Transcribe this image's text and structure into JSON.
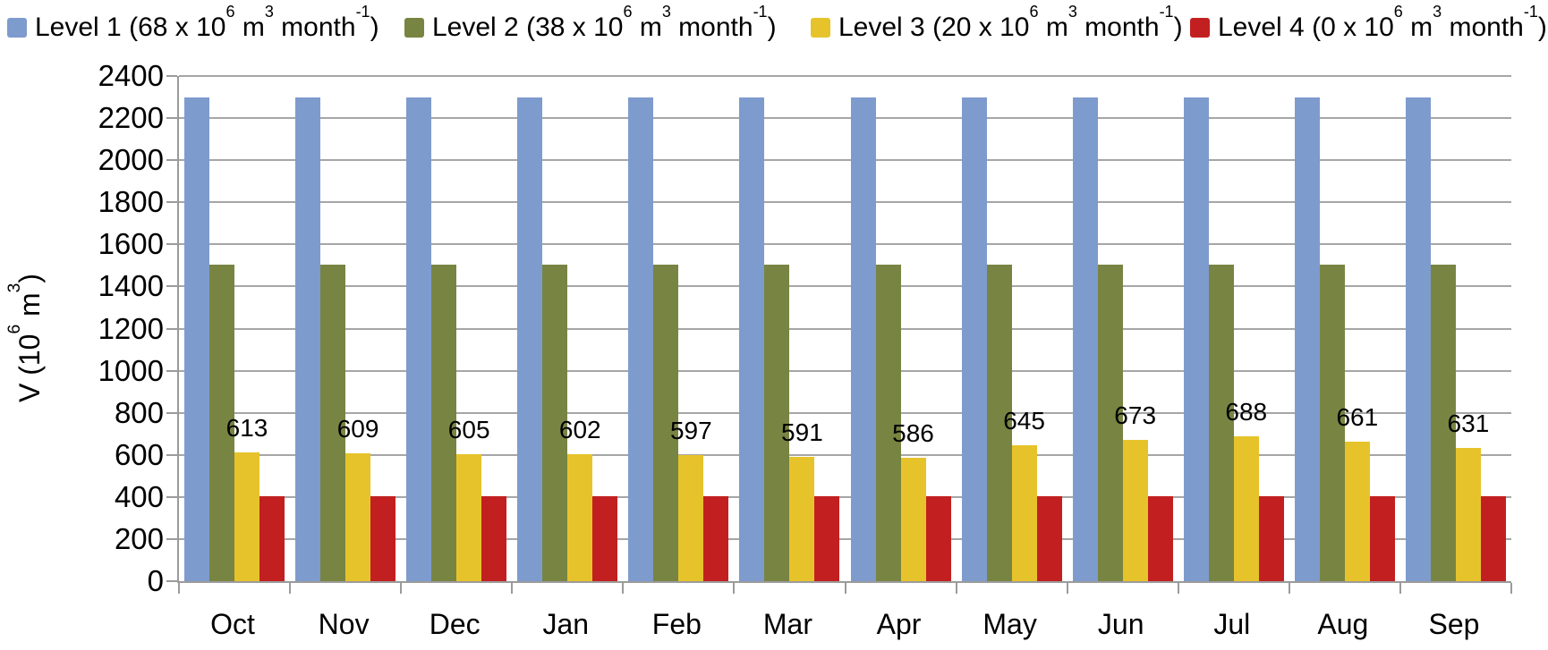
{
  "chart_data": {
    "type": "bar",
    "title": "",
    "xlabel": "",
    "ylabel": "V (10^{6} m^{3})",
    "ylim": [
      0,
      2400
    ],
    "ytick_step": 200,
    "grid": true,
    "legend_position": "top",
    "categories": [
      "Oct",
      "Nov",
      "Dec",
      "Jan",
      "Feb",
      "Mar",
      "Apr",
      "May",
      "Jun",
      "Jul",
      "Aug",
      "Sep"
    ],
    "series": [
      {
        "name": "Level 1 (68 x 10^{6} m^{3} month^{-1})",
        "color": "#7E9BCD",
        "values": [
          2300,
          2300,
          2300,
          2300,
          2300,
          2300,
          2300,
          2300,
          2300,
          2300,
          2300,
          2300
        ],
        "data_labels": false
      },
      {
        "name": "Level 2 (38 x 10^{6} m^{3} month^{-1})",
        "color": "#788442",
        "values": [
          1505,
          1505,
          1505,
          1505,
          1505,
          1505,
          1505,
          1505,
          1505,
          1505,
          1505,
          1505
        ],
        "data_labels": false
      },
      {
        "name": "Level 3 (20 x 10^{6} m^{3} month^{-1})",
        "color": "#E7C32B",
        "values": [
          613,
          609,
          605,
          602,
          597,
          591,
          586,
          645,
          673,
          688,
          661,
          631
        ],
        "data_labels": true
      },
      {
        "name": "Level 4 (0 x 10^{6} m^{3} month^{-1})",
        "color": "#C22020",
        "values": [
          405,
          405,
          405,
          405,
          405,
          405,
          405,
          405,
          405,
          405,
          405,
          405
        ],
        "data_labels": false
      }
    ],
    "colors": {
      "gridline": "#A6A6A6",
      "axis": "#9B9B9B",
      "text": "#000000"
    }
  }
}
